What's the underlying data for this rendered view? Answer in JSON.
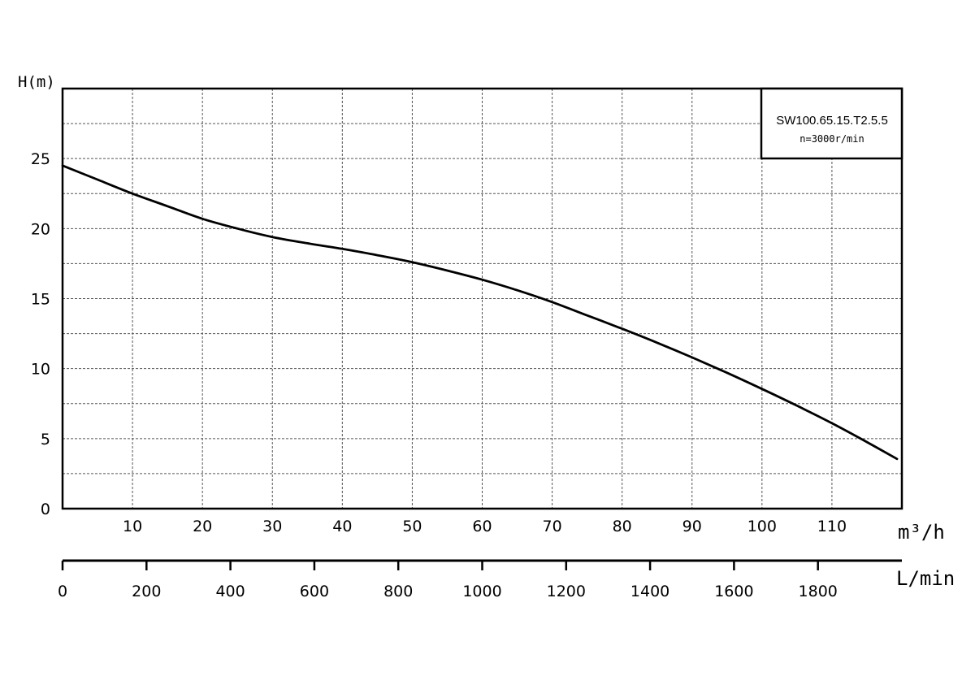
{
  "chart_data": {
    "type": "line",
    "ylabel": "H(m)",
    "ylim": [
      0,
      30
    ],
    "y_ticks": [
      "0",
      "5",
      "10",
      "15",
      "20",
      "25"
    ],
    "y_grid_step": 2.5,
    "xlim": [
      0,
      120
    ],
    "x_ticks": [
      "10",
      "20",
      "30",
      "40",
      "50",
      "60",
      "70",
      "80",
      "90",
      "100",
      "110"
    ],
    "x_grid_step": 10,
    "x_unit_label": "m³/h",
    "secondary_x_unit_label": "L/min",
    "secondary_x_ticks": [
      "0",
      "200",
      "400",
      "600",
      "800",
      "1000",
      "1200",
      "1400",
      "1600",
      "1800"
    ],
    "grid": true,
    "legend_position": "top-right",
    "legend": {
      "model": "SW100.65.15.T2.5.5",
      "speed": "n=3000r/min"
    },
    "series": [
      {
        "x": [
          0,
          5,
          10,
          15,
          20,
          25,
          30,
          35,
          40,
          45,
          50,
          55,
          60,
          65,
          70,
          75,
          80,
          85,
          90,
          95,
          100,
          105,
          110,
          115,
          119.3
        ],
        "values": [
          24.5,
          23.5,
          22.5,
          21.6,
          20.7,
          20.0,
          19.4,
          18.95,
          18.55,
          18.1,
          17.6,
          17.0,
          16.35,
          15.6,
          14.75,
          13.8,
          12.85,
          11.85,
          10.8,
          9.7,
          8.55,
          7.35,
          6.1,
          4.75,
          3.55
        ]
      }
    ]
  }
}
